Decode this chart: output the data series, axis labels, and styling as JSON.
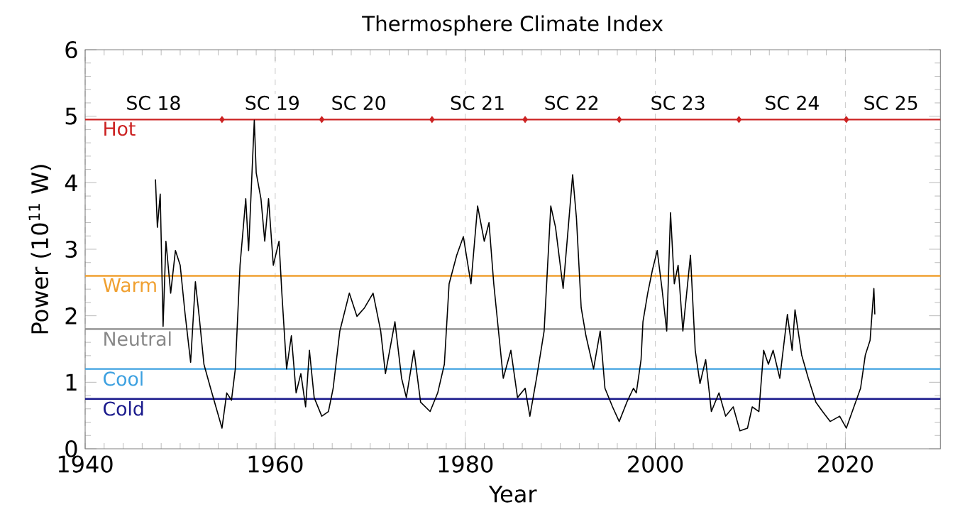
{
  "chart_data": {
    "type": "line",
    "title": "Thermosphere Climate Index",
    "xlabel": "Year",
    "ylabel": "Power (10$^{11}$ W)",
    "xlim": [
      1940,
      2030
    ],
    "ylim": [
      0,
      6
    ],
    "xticks": [
      1940,
      1960,
      1980,
      2000,
      2020
    ],
    "yticks": [
      0,
      1,
      2,
      3,
      4,
      5,
      6
    ],
    "grid": "x",
    "series": [
      {
        "color": "#000000",
        "x": [
          1947.4,
          1947.6,
          1947.9,
          1948.2,
          1948.5,
          1949.0,
          1949.5,
          1950.0,
          1950.5,
          1951.1,
          1951.6,
          1952.0,
          1952.5,
          1953.2,
          1953.9,
          1954.4,
          1954.9,
          1955.4,
          1955.8,
          1956.3,
          1956.9,
          1957.2,
          1957.8,
          1958.0,
          1958.5,
          1958.9,
          1959.3,
          1959.8,
          1960.4,
          1960.7,
          1961.2,
          1961.7,
          1962.2,
          1962.7,
          1963.2,
          1963.6,
          1964.1,
          1964.9,
          1965.6,
          1966.1,
          1966.8,
          1967.8,
          1968.6,
          1969.4,
          1970.3,
          1971.1,
          1971.6,
          1972.6,
          1973.3,
          1973.8,
          1974.6,
          1975.3,
          1976.3,
          1977.1,
          1977.8,
          1978.3,
          1979.1,
          1979.8,
          1980.6,
          1981.3,
          1982.0,
          1982.5,
          1983.0,
          1983.5,
          1984.0,
          1984.8,
          1985.5,
          1986.3,
          1986.8,
          1987.5,
          1988.3,
          1989.0,
          1989.5,
          1990.3,
          1990.8,
          1991.3,
          1991.7,
          1992.2,
          1992.7,
          1993.5,
          1994.2,
          1994.7,
          1995.5,
          1996.2,
          1997.0,
          1997.7,
          1998.0,
          1998.5,
          1998.7,
          1999.2,
          1999.7,
          2000.2,
          2000.7,
          2001.2,
          2001.6,
          2002.0,
          2002.4,
          2002.9,
          2003.7,
          2004.2,
          2004.7,
          2005.3,
          2005.9,
          2006.7,
          2007.4,
          2008.2,
          2008.9,
          2009.7,
          2010.2,
          2010.9,
          2011.4,
          2011.9,
          2012.4,
          2013.1,
          2013.9,
          2014.4,
          2014.7,
          2015.4,
          2016.1,
          2016.9,
          2017.6,
          2018.4,
          2019.4,
          2020.1,
          2020.9,
          2021.6,
          2022.1,
          2022.6,
          2023.0,
          2023.1
        ],
        "values": [
          4.05,
          3.33,
          3.83,
          1.84,
          3.12,
          2.34,
          2.98,
          2.76,
          2.05,
          1.3,
          2.51,
          1.99,
          1.27,
          0.91,
          0.56,
          0.31,
          0.84,
          0.73,
          1.2,
          2.76,
          3.76,
          2.98,
          4.94,
          4.15,
          3.76,
          3.12,
          3.76,
          2.76,
          3.12,
          2.34,
          1.2,
          1.7,
          0.84,
          1.13,
          0.63,
          1.48,
          0.77,
          0.49,
          0.56,
          0.91,
          1.77,
          2.34,
          1.99,
          2.12,
          2.34,
          1.77,
          1.13,
          1.91,
          1.06,
          0.77,
          1.48,
          0.7,
          0.56,
          0.84,
          1.27,
          2.48,
          2.91,
          3.19,
          2.48,
          3.65,
          3.12,
          3.4,
          2.48,
          1.77,
          1.06,
          1.48,
          0.77,
          0.91,
          0.49,
          1.06,
          1.77,
          3.65,
          3.33,
          2.41,
          3.26,
          4.12,
          3.47,
          2.12,
          1.7,
          1.2,
          1.77,
          0.91,
          0.63,
          0.41,
          0.7,
          0.91,
          0.84,
          1.34,
          1.91,
          2.34,
          2.69,
          2.98,
          2.41,
          1.77,
          3.55,
          2.48,
          2.76,
          1.77,
          2.91,
          1.48,
          0.98,
          1.34,
          0.56,
          0.84,
          0.49,
          0.63,
          0.27,
          0.31,
          0.63,
          0.56,
          1.48,
          1.27,
          1.48,
          1.06,
          2.02,
          1.48,
          2.09,
          1.41,
          1.06,
          0.7,
          0.56,
          0.41,
          0.49,
          0.31,
          0.63,
          0.91,
          1.41,
          1.63,
          2.41,
          2.02
        ]
      },
      {
        "type": "scatter",
        "marker": "diamond",
        "color": "#cc2222",
        "x": [
          1954.4,
          1964.9,
          1976.5,
          1986.3,
          1996.2,
          2008.8,
          2020.1
        ],
        "values": [
          4.95,
          4.95,
          4.95,
          4.95,
          4.95,
          4.95,
          4.95
        ]
      }
    ],
    "ref_lines": [
      {
        "axis": "y",
        "value": 4.95,
        "label": "Hot",
        "color": "#cc2222"
      },
      {
        "axis": "y",
        "value": 2.6,
        "label": "Warm",
        "color": "#f0a030"
      },
      {
        "axis": "y",
        "value": 1.8,
        "label": "Neutral",
        "color": "#888888"
      },
      {
        "axis": "y",
        "value": 1.2,
        "label": "Cool",
        "color": "#3ca0e0"
      },
      {
        "axis": "y",
        "value": 0.75,
        "label": "Cold",
        "color": "#1a1a8c"
      }
    ],
    "annotations": [
      {
        "text": "SC 18",
        "x": 1947.2,
        "y": 5.2
      },
      {
        "text": "SC 19",
        "x": 1959.7,
        "y": 5.2
      },
      {
        "text": "SC 20",
        "x": 1968.8,
        "y": 5.2
      },
      {
        "text": "SC 21",
        "x": 1981.3,
        "y": 5.2
      },
      {
        "text": "SC 22",
        "x": 1991.2,
        "y": 5.2
      },
      {
        "text": "SC 23",
        "x": 2002.4,
        "y": 5.2
      },
      {
        "text": "SC 24",
        "x": 2014.4,
        "y": 5.2
      },
      {
        "text": "SC 25",
        "x": 2024.8,
        "y": 5.2
      }
    ]
  }
}
